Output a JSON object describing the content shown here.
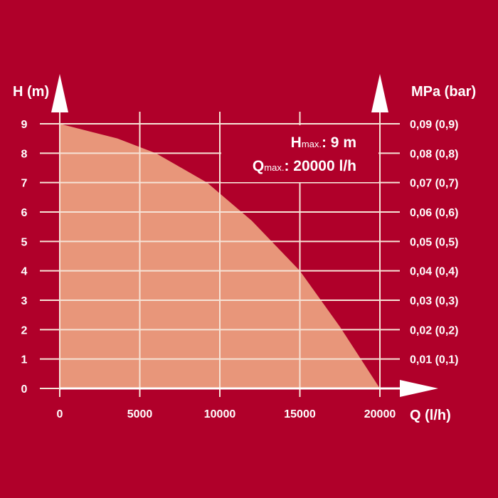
{
  "chart_data": {
    "type": "area",
    "title": "",
    "xlabel": "Q (l/h)",
    "ylabel": "H (m)",
    "y2label": "MPa (bar)",
    "xlim": [
      0,
      20000
    ],
    "ylim": [
      0,
      9
    ],
    "grid": true,
    "x_ticks": [
      "0",
      "5000",
      "10000",
      "15000",
      "20000"
    ],
    "x_tick_values": [
      0,
      5000,
      10000,
      15000,
      20000
    ],
    "y_ticks": [
      "0",
      "1",
      "2",
      "3",
      "4",
      "5",
      "6",
      "7",
      "8",
      "9"
    ],
    "y2_ticks": [
      "0,01 (0,1)",
      "0,02 (0,2)",
      "0,03 (0,3)",
      "0,04 (0,4)",
      "0,05 (0,5)",
      "0,06 (0,6)",
      "0,07 (0,7)",
      "0,08 (0,8)",
      "0,09 (0,9)"
    ],
    "series": [
      {
        "name": "H",
        "x": [
          0,
          3600,
          6000,
          9200,
          12000,
          15000,
          17500,
          20000
        ],
        "y": [
          9,
          8.5,
          8.0,
          7.0,
          5.7,
          4.0,
          2.1,
          0
        ]
      }
    ],
    "annotations": {
      "hmax_main": "H",
      "hmax_sub": "max.",
      "hmax_value": ": 9 m",
      "qmax_main": "Q",
      "qmax_sub": "max.",
      "qmax_value": ": 20000 l/h"
    },
    "colors": {
      "background": "#b0002a",
      "fill": "#e8967a",
      "grid": "#f6e3d6"
    }
  }
}
